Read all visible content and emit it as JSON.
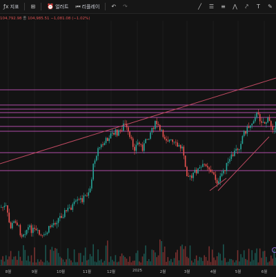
{
  "toolbar": {
    "left_items": [
      {
        "icon": "indicator-icon",
        "label": "지표"
      },
      {
        "icon": "layout-grid-icon",
        "label": ""
      },
      {
        "icon": "alert-clock-icon",
        "label": "얼러트"
      },
      {
        "icon": "replay-icon",
        "label": "리플레이"
      },
      {
        "icon": "undo-icon",
        "label": ""
      },
      {
        "icon": "redo-icon",
        "label": ""
      }
    ],
    "right_icons": [
      "trend-line-icon",
      "horizontal-line-icon",
      "fib-channel-icon",
      "pattern-icon",
      "arrow-icon",
      "text-icon",
      "brush-icon"
    ]
  },
  "ohlc": {
    "prev_value": "104,792.98",
    "close_label": "종",
    "close_value": "104,985.51",
    "change": "−1,081.08 (−1.02%)"
  },
  "colors": {
    "up": "#26a69a",
    "down": "#ef5350",
    "level": "#b24ea8",
    "trend": "#c04a62"
  },
  "x_axis": {
    "labels": [
      "8월",
      "9월",
      "10월",
      "11월",
      "12월",
      "2025",
      "2월",
      "3월",
      "4월",
      "5월",
      "6월"
    ]
  }
}
